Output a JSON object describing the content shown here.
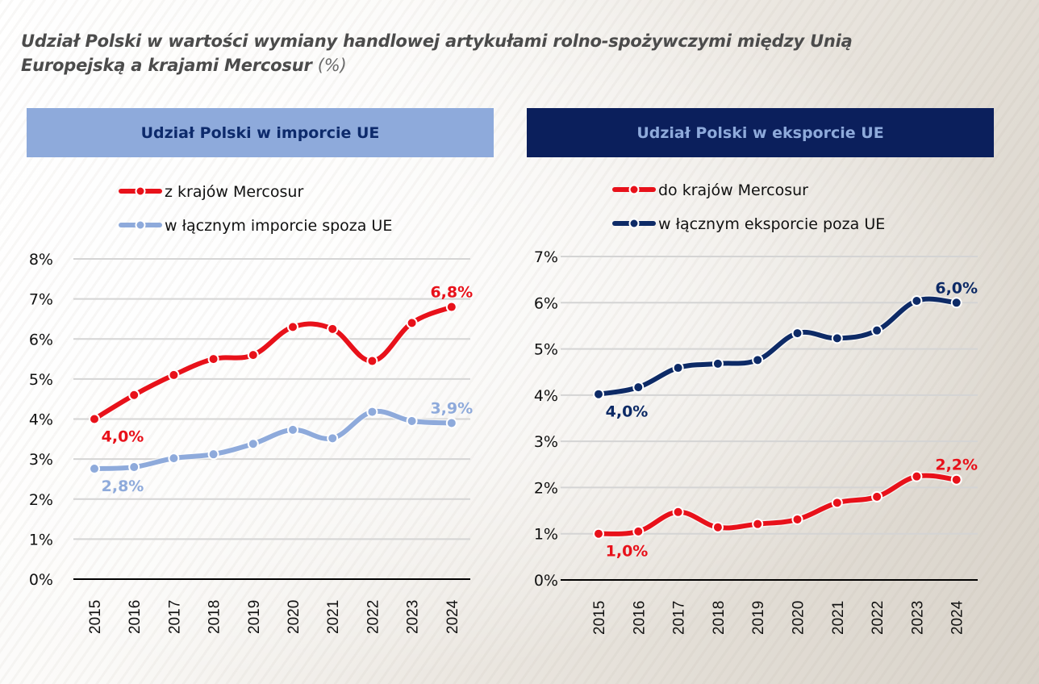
{
  "title": {
    "line1": "Udział Polski w wartości wymiany handlowej artykułami rolno-spożywczymi między Unią",
    "line2": "Europejską a krajami Mercosur",
    "unit": "(%)"
  },
  "colors": {
    "red": "#e8111a",
    "light_blue": "#8eaadb",
    "navy": "#0d2a66",
    "header_left_bg": "#8eaadb",
    "header_left_text": "#0d2a6b",
    "header_right_bg": "#0b1f5c",
    "header_right_text": "#8eaadb"
  },
  "panels": {
    "left": {
      "header": "Udział Polski w imporcie UE"
    },
    "right": {
      "header": "Udział Polski w eksporcie UE"
    }
  },
  "chart_data": [
    {
      "type": "line",
      "title": "Udział Polski w imporcie UE",
      "xlabel": "",
      "ylabel": "",
      "categories": [
        "2015",
        "2016",
        "2017",
        "2018",
        "2019",
        "2020",
        "2021",
        "2022",
        "2023",
        "2024"
      ],
      "yticks": [
        "0%",
        "1%",
        "2%",
        "3%",
        "4%",
        "5%",
        "6%",
        "7%",
        "8%"
      ],
      "ylim": [
        0,
        8
      ],
      "grid": true,
      "legend_position": "top",
      "series": [
        {
          "name": "z krajów Mercosur",
          "color": "#e8111a",
          "values": [
            4.0,
            4.6,
            5.1,
            5.5,
            5.6,
            6.3,
            6.25,
            5.45,
            6.4,
            6.8
          ],
          "labels": [
            {
              "index": 0,
              "text": "4,0%",
              "pos": "below"
            },
            {
              "index": 9,
              "text": "6,8%",
              "pos": "above"
            }
          ]
        },
        {
          "name": "w łącznym imporcie spoza UE",
          "color": "#8eaadb",
          "values": [
            2.76,
            2.8,
            3.02,
            3.12,
            3.38,
            3.73,
            3.52,
            4.18,
            3.95,
            3.9
          ],
          "labels": [
            {
              "index": 0,
              "text": "2,8%",
              "pos": "below"
            },
            {
              "index": 9,
              "text": "3,9%",
              "pos": "above"
            }
          ]
        }
      ]
    },
    {
      "type": "line",
      "title": "Udział Polski w eksporcie UE",
      "xlabel": "",
      "ylabel": "",
      "categories": [
        "2015",
        "2016",
        "2017",
        "2018",
        "2019",
        "2020",
        "2021",
        "2022",
        "2023",
        "2024"
      ],
      "yticks": [
        "0%",
        "1%",
        "2%",
        "3%",
        "4%",
        "5%",
        "6%",
        "7%"
      ],
      "ylim": [
        0,
        7
      ],
      "grid": true,
      "legend_position": "top",
      "series": [
        {
          "name": "do krajów Mercosur",
          "color": "#e8111a",
          "values": [
            1.0,
            1.05,
            1.47,
            1.14,
            1.21,
            1.31,
            1.67,
            1.8,
            2.24,
            2.17
          ],
          "labels": [
            {
              "index": 0,
              "text": "1,0%",
              "pos": "below"
            },
            {
              "index": 9,
              "text": "2,2%",
              "pos": "above"
            }
          ]
        },
        {
          "name": "w łącznym eksporcie poza UE",
          "color": "#0d2a66",
          "values": [
            4.02,
            4.17,
            4.59,
            4.68,
            4.76,
            5.34,
            5.23,
            5.4,
            6.04,
            6.0
          ],
          "labels": [
            {
              "index": 0,
              "text": "4,0%",
              "pos": "below"
            },
            {
              "index": 9,
              "text": "6,0%",
              "pos": "above"
            }
          ]
        }
      ]
    }
  ]
}
